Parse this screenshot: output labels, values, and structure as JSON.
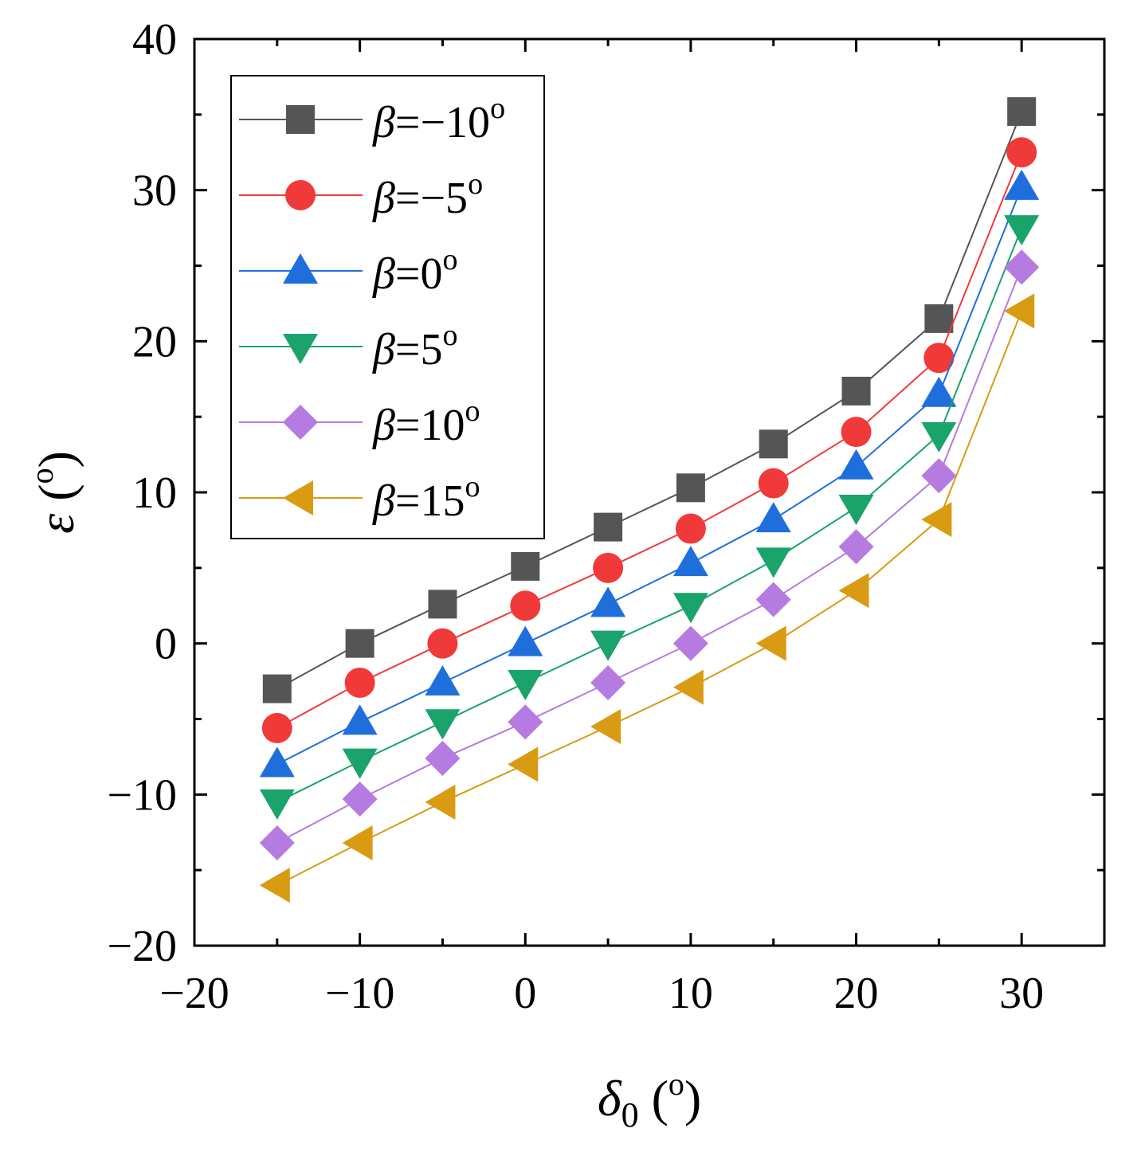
{
  "chart_data": {
    "type": "line",
    "xlabel": {
      "symbol": "δ",
      "sub": "0",
      "unit": " (",
      "unit_sup": "o",
      "unit_end": ")"
    },
    "ylabel": {
      "symbol": "ε",
      "unit": " (",
      "unit_sup": "o",
      "unit_end": ")"
    },
    "xlim": [
      -20,
      35
    ],
    "ylim": [
      -20,
      40
    ],
    "x_ticks": [
      -20,
      -10,
      0,
      10,
      20,
      30
    ],
    "y_ticks": [
      -20,
      -10,
      0,
      10,
      20,
      30,
      40
    ],
    "x_tick_labels": [
      "−20",
      "−10",
      "0",
      "10",
      "20",
      "30"
    ],
    "y_tick_labels": [
      "−20",
      "−10",
      "0",
      "10",
      "20",
      "30",
      "40"
    ],
    "x": [
      -15,
      -10,
      -5,
      0,
      5,
      10,
      15,
      20,
      25,
      30
    ],
    "legend_position": "top-left",
    "series": [
      {
        "name": "β=−10o",
        "label_symbol": "β",
        "label_value": "=−10",
        "label_sup": "o",
        "color": "#555555",
        "marker": "square",
        "values": [
          -3,
          0,
          2.6,
          5.1,
          7.7,
          10.3,
          13.2,
          16.7,
          21.5,
          35.2
        ]
      },
      {
        "name": "β=−5o",
        "label_symbol": "β",
        "label_value": "=−5",
        "label_sup": "o",
        "color": "#f03a3a",
        "marker": "circle",
        "values": [
          -5.6,
          -2.6,
          0,
          2.5,
          5.0,
          7.6,
          10.6,
          14.0,
          18.9,
          32.5
        ]
      },
      {
        "name": "β=0o",
        "label_symbol": "β",
        "label_value": "=0",
        "label_sup": "o",
        "color": "#1e6fdc",
        "marker": "triangle-up",
        "values": [
          -8.0,
          -5.2,
          -2.6,
          0,
          2.6,
          5.3,
          8.2,
          11.7,
          16.5,
          30.2
        ]
      },
      {
        "name": "β=5o",
        "label_symbol": "β",
        "label_value": "=5",
        "label_sup": "o",
        "color": "#1aa36a",
        "marker": "triangle-down",
        "values": [
          -10.5,
          -7.8,
          -5.2,
          -2.6,
          0,
          2.5,
          5.5,
          9.0,
          13.8,
          27.5
        ]
      },
      {
        "name": "β=10o",
        "label_symbol": "β",
        "label_value": "=10",
        "label_sup": "o",
        "color": "#b57be0",
        "marker": "diamond",
        "values": [
          -13.2,
          -10.3,
          -7.6,
          -5.2,
          -2.6,
          0,
          2.9,
          6.4,
          11.1,
          24.9
        ]
      },
      {
        "name": "β=15o",
        "label_symbol": "β",
        "label_value": "=15",
        "label_sup": "o",
        "color": "#d99b12",
        "marker": "triangle-left",
        "values": [
          -16.0,
          -13.2,
          -10.5,
          -8.0,
          -5.5,
          -2.9,
          0,
          3.5,
          8.2,
          22.0
        ]
      }
    ]
  }
}
